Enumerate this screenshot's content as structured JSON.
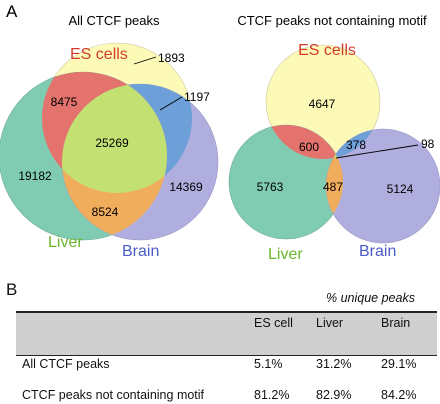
{
  "panel_a": {
    "letter": "A",
    "left": {
      "title": "All CTCF peaks",
      "set_labels": {
        "es": "ES cells",
        "liver": "Liver",
        "brain": "Brain"
      },
      "regions": {
        "es_only": "1893",
        "es_brain": "1197",
        "es_liver": "8475",
        "all": "25269",
        "liver_only": "19182",
        "brain_only": "14369",
        "liver_brain": "8524"
      }
    },
    "right": {
      "title": "CTCF peaks not containing motif",
      "set_labels": {
        "es": "ES cells",
        "liver": "Liver",
        "brain": "Brain"
      },
      "regions": {
        "es_only": "4647",
        "es_liver": "600",
        "es_brain": "378",
        "all": "98",
        "liver_only": "5763",
        "liver_brain": "487",
        "brain_only": "5124"
      }
    },
    "colors": {
      "es": "#fdfab8",
      "es_label": "#d23b2c",
      "liver": "#7fccb2",
      "liver_label": "#69b52b",
      "brain": "#b0aede",
      "brain_label": "#4a5cc5",
      "es_liver": "#e4736e",
      "es_brain": "#6d9fd8",
      "liver_brain": "#f0ad5c",
      "all": "#c3e072"
    }
  },
  "panel_b": {
    "letter": "B",
    "super_header": "% unique peaks",
    "columns": [
      "ES cell",
      "Liver",
      "Brain"
    ],
    "rows": [
      {
        "label": "All CTCF peaks",
        "values": [
          "5.1%",
          "31.2%",
          "29.1%"
        ]
      },
      {
        "label": "CTCF peaks not containing motif",
        "values": [
          "81.2%",
          "82.9%",
          "84.2%"
        ]
      }
    ]
  }
}
